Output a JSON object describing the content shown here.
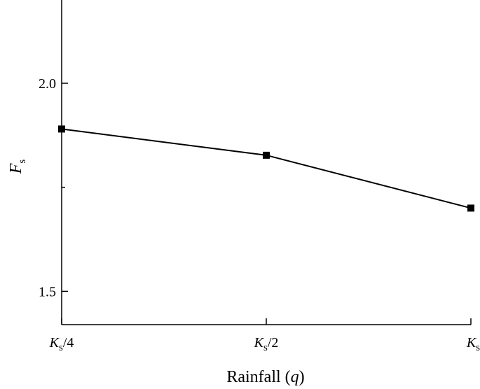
{
  "chart_data": {
    "type": "line",
    "categories": [
      "Ks/4",
      "Ks/2",
      "Ks"
    ],
    "tick_labels": [
      {
        "main": "K",
        "sub": "s",
        "suffix": "/4"
      },
      {
        "main": "K",
        "sub": "s",
        "suffix": "/2"
      },
      {
        "main": "K",
        "sub": "s",
        "suffix": ""
      }
    ],
    "series": [
      {
        "values": [
          1.89,
          1.827,
          1.7
        ]
      }
    ],
    "xlabel": {
      "text": "Rainfall (",
      "var": "q",
      "close": ")"
    },
    "ylabel": {
      "main": "F",
      "sub": "s"
    },
    "ylim": [
      1.42,
      2.2
    ],
    "yticks_major": [
      1.5,
      2.0
    ],
    "yticks_major_labels": [
      "1.5",
      "2.0"
    ],
    "yticks_minor": [
      1.75
    ],
    "grid": false,
    "line_color": "#000000",
    "marker": "square"
  }
}
